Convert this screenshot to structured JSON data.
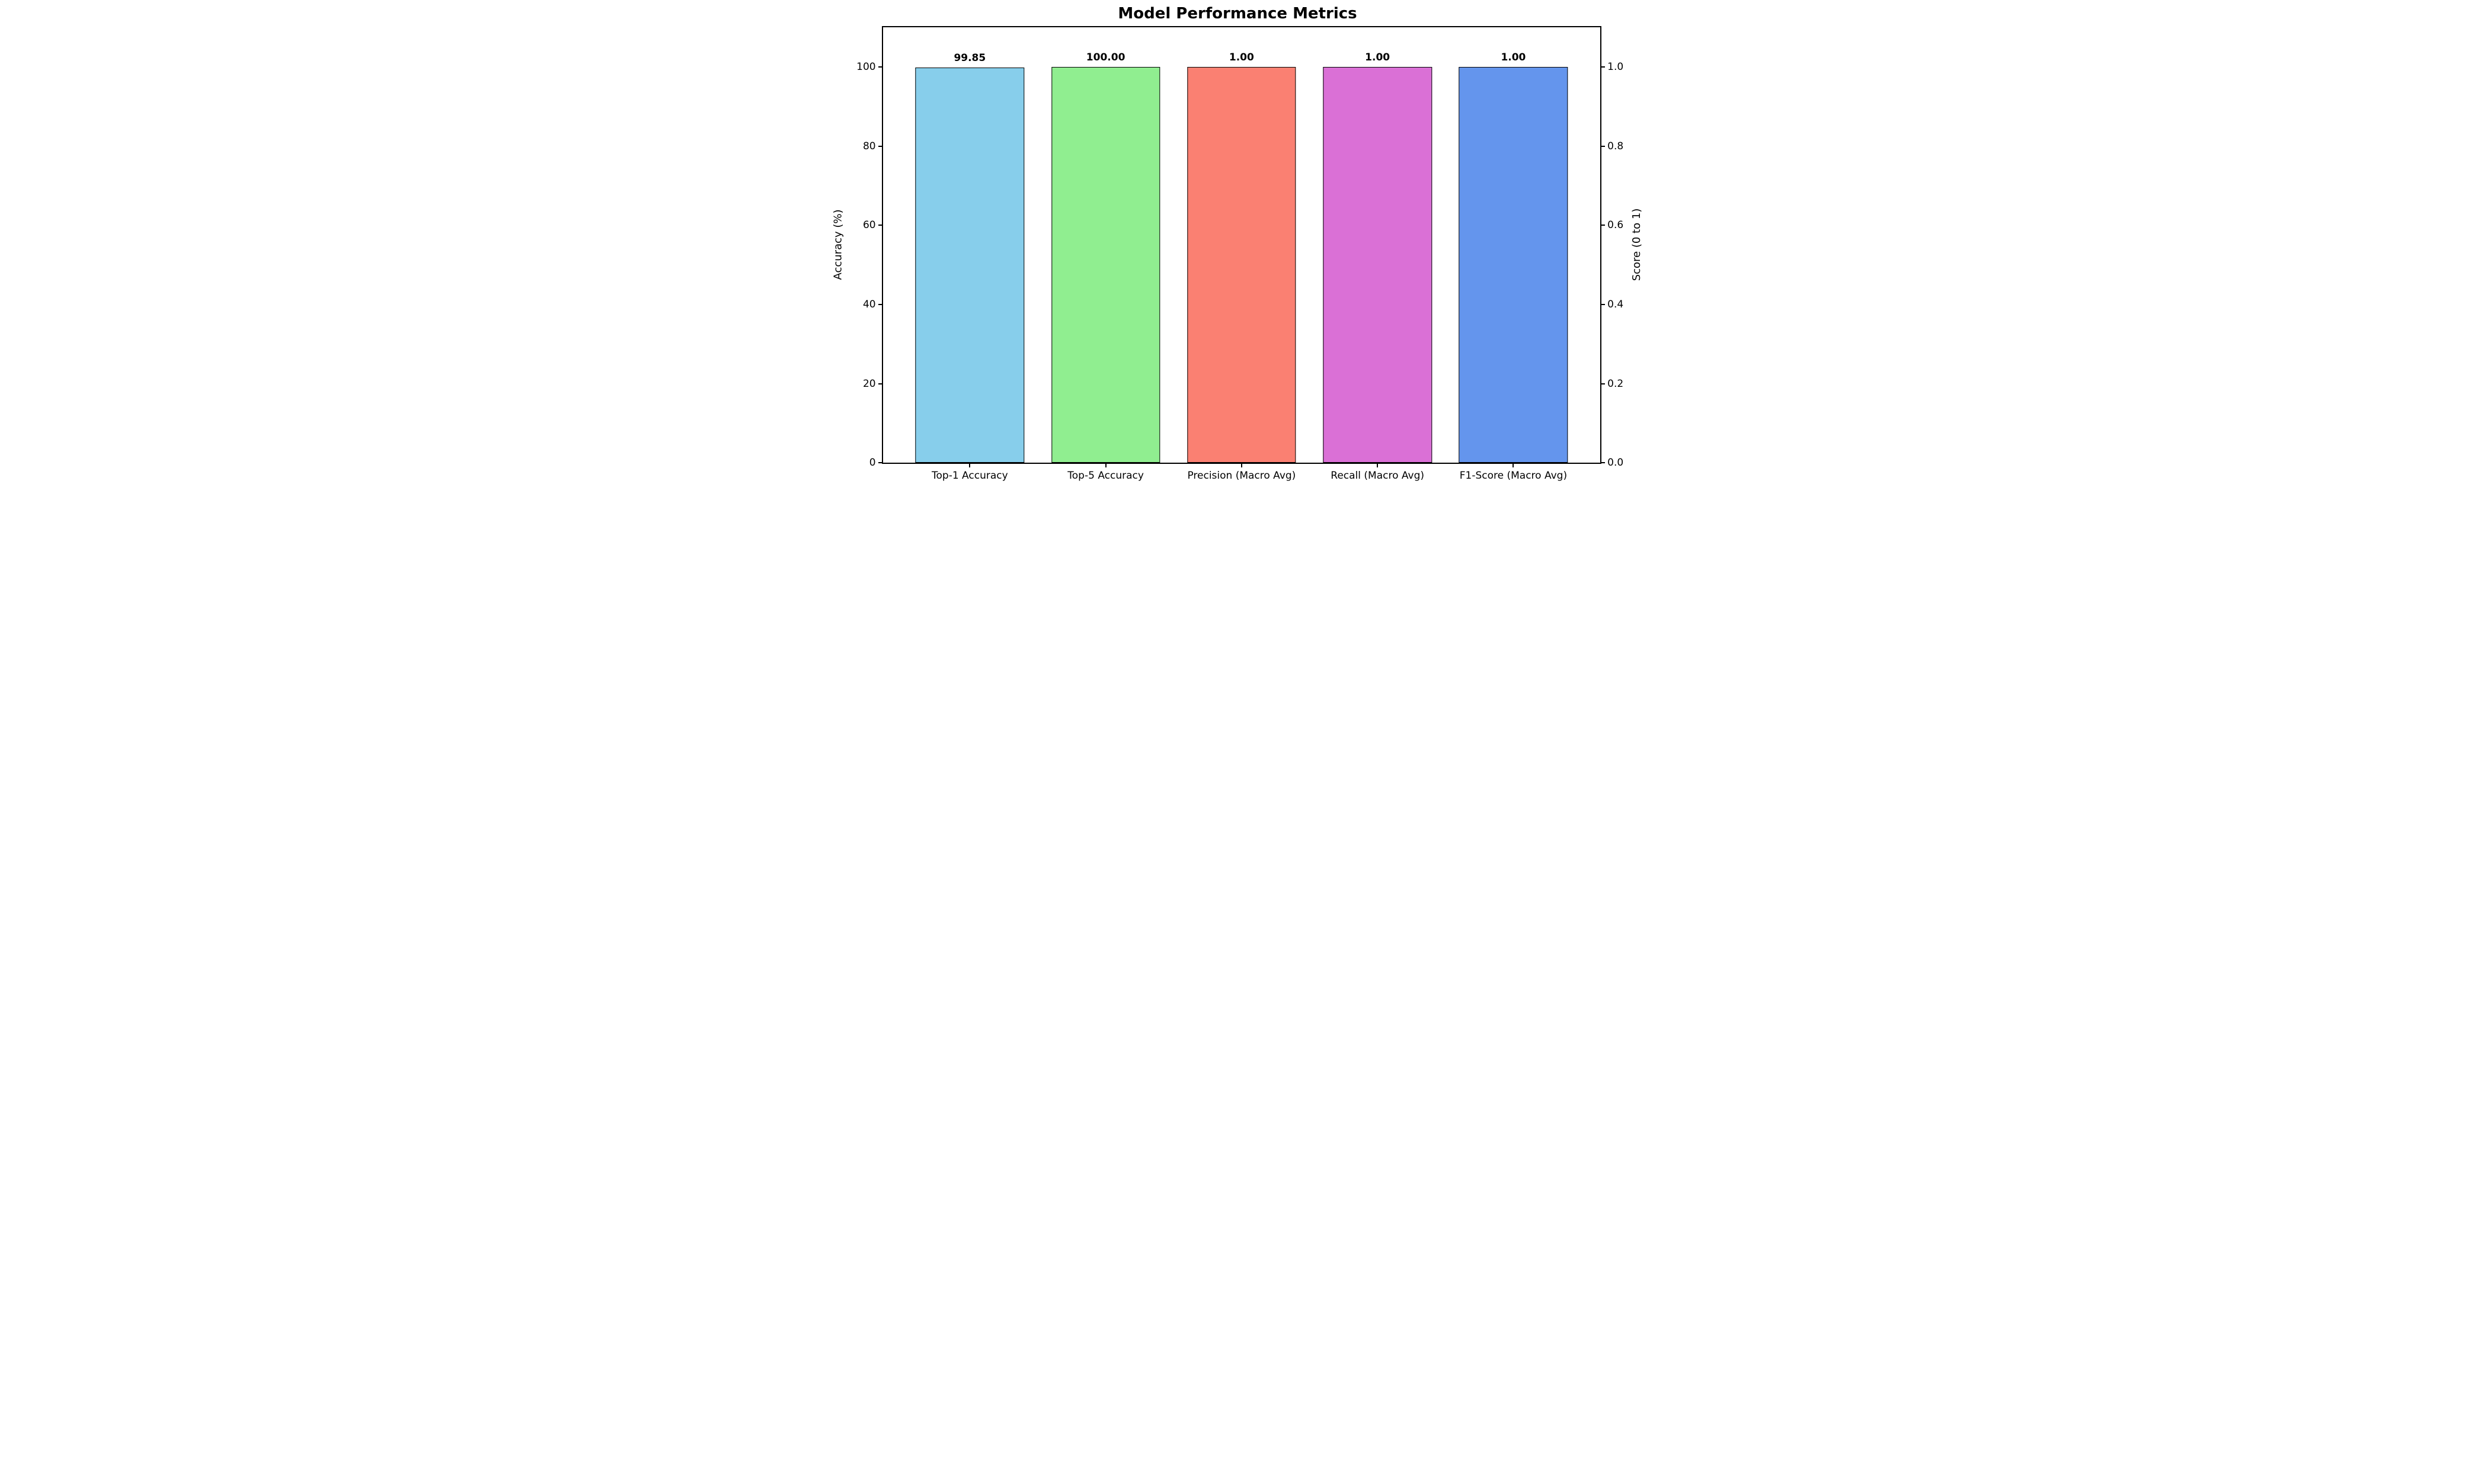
{
  "chart_data": {
    "type": "bar",
    "title": "Model Performance Metrics",
    "categories": [
      "Top-1 Accuracy",
      "Top-5 Accuracy",
      "Precision (Macro Avg)",
      "Recall (Macro Avg)",
      "F1-Score (Macro Avg)"
    ],
    "values": [
      99.85,
      100.0,
      1.0,
      1.0,
      1.0
    ],
    "bar_value_labels": [
      "99.85",
      "100.00",
      "1.00",
      "1.00",
      "1.00"
    ],
    "plotted_pct": [
      99.85,
      100.0,
      100.0,
      100.0,
      100.0
    ],
    "colors": [
      "#87CEEB",
      "#90EE90",
      "#FA8072",
      "#DA70D6",
      "#6495ED"
    ],
    "bar_edge_color": "#000000",
    "background_color": "#FFFFFF",
    "grid": false,
    "legend": null,
    "left_axis": {
      "label": "Accuracy (%)",
      "tick_labels": [
        "0",
        "20",
        "40",
        "60",
        "80",
        "100"
      ],
      "tick_values": [
        0,
        20,
        40,
        60,
        80,
        100
      ],
      "lim": [
        0,
        110
      ]
    },
    "right_axis": {
      "label": "Score (0 to 1)",
      "tick_labels": [
        "0.0",
        "0.2",
        "0.4",
        "0.6",
        "0.8",
        "1.0"
      ],
      "tick_values": [
        0.0,
        0.2,
        0.4,
        0.6,
        0.8,
        1.0
      ],
      "lim": [
        0,
        1.1
      ]
    },
    "x_axis": {
      "centers_pct": [
        12.12,
        31.06,
        50.0,
        68.94,
        87.88
      ],
      "bar_width_pct": 15.15
    }
  }
}
